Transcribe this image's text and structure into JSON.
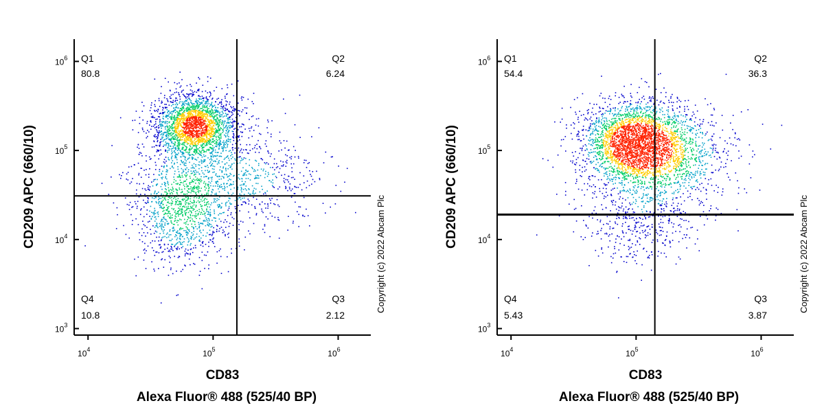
{
  "chart_data": [
    {
      "type": "scatter",
      "subtype": "flow-cytometry-density-dot-plot",
      "x_axis": {
        "title_line1": "CD83",
        "title_line2": "Alexa Fluor® 488  (525/40 BP)",
        "scale": "log",
        "range_log10": [
          3.9,
          6.25
        ],
        "ticks": [
          {
            "base": "10",
            "exp": "4",
            "log": 4
          },
          {
            "base": "10",
            "exp": "5",
            "log": 5
          },
          {
            "base": "10",
            "exp": "6",
            "log": 6
          }
        ]
      },
      "y_axis": {
        "title": "CD209 APC (660/10)",
        "scale": "log",
        "range_log10": [
          2.95,
          6.25
        ],
        "ticks": [
          {
            "base": "10",
            "exp": "3",
            "log": 3
          },
          {
            "base": "10",
            "exp": "4",
            "log": 4
          },
          {
            "base": "10",
            "exp": "5",
            "log": 5
          },
          {
            "base": "10",
            "exp": "6",
            "log": 6
          }
        ]
      },
      "gate_log10": {
        "x": 5.19,
        "y": 4.49
      },
      "quadrants": [
        {
          "name": "Q1",
          "value": "80.8"
        },
        {
          "name": "Q2",
          "value": "6.24"
        },
        {
          "name": "Q3",
          "value": "2.12"
        },
        {
          "name": "Q4",
          "value": "10.8"
        }
      ],
      "populations_log10": [
        {
          "cx": 4.85,
          "cy": 5.28,
          "sx": 0.16,
          "sy": 0.18,
          "weight": 0.55
        },
        {
          "cx": 4.75,
          "cy": 4.4,
          "sx": 0.2,
          "sy": 0.35,
          "weight": 0.3
        },
        {
          "cx": 5.3,
          "cy": 4.7,
          "sx": 0.3,
          "sy": 0.3,
          "weight": 0.15
        }
      ],
      "copyright": "Copyright (c) 2022 Abcam Plc"
    },
    {
      "type": "scatter",
      "subtype": "flow-cytometry-density-dot-plot",
      "x_axis": {
        "title_line1": "CD83",
        "title_line2": "Alexa Fluor® 488  (525/40 BP)",
        "scale": "log",
        "range_log10": [
          3.9,
          6.25
        ],
        "ticks": [
          {
            "base": "10",
            "exp": "4",
            "log": 4
          },
          {
            "base": "10",
            "exp": "5",
            "log": 5
          },
          {
            "base": "10",
            "exp": "6",
            "log": 6
          }
        ]
      },
      "y_axis": {
        "title": "CD209 APC (660/10)",
        "scale": "log",
        "range_log10": [
          2.95,
          6.25
        ],
        "ticks": [
          {
            "base": "10",
            "exp": "3",
            "log": 3
          },
          {
            "base": "10",
            "exp": "4",
            "log": 4
          },
          {
            "base": "10",
            "exp": "5",
            "log": 5
          },
          {
            "base": "10",
            "exp": "6",
            "log": 6
          }
        ]
      },
      "gate_log10": {
        "x": 5.15,
        "y": 4.28
      },
      "quadrants": [
        {
          "name": "Q1",
          "value": "54.4"
        },
        {
          "name": "Q2",
          "value": "36.3"
        },
        {
          "name": "Q3",
          "value": "3.87"
        },
        {
          "name": "Q4",
          "value": "5.43"
        }
      ],
      "populations_log10": [
        {
          "cx": 4.97,
          "cy": 5.1,
          "sx": 0.2,
          "sy": 0.22,
          "weight": 0.55
        },
        {
          "cx": 5.2,
          "cy": 4.95,
          "sx": 0.28,
          "sy": 0.3,
          "weight": 0.35
        },
        {
          "cx": 5.0,
          "cy": 4.2,
          "sx": 0.25,
          "sy": 0.25,
          "weight": 0.1
        }
      ],
      "copyright": "Copyright (c) 2022 Abcam Plc"
    }
  ],
  "colors": {
    "low": "#0000cc",
    "mid": "#00cc66",
    "high": "#ffcc00",
    "peak": "#ff2200",
    "gate": "#000000"
  }
}
